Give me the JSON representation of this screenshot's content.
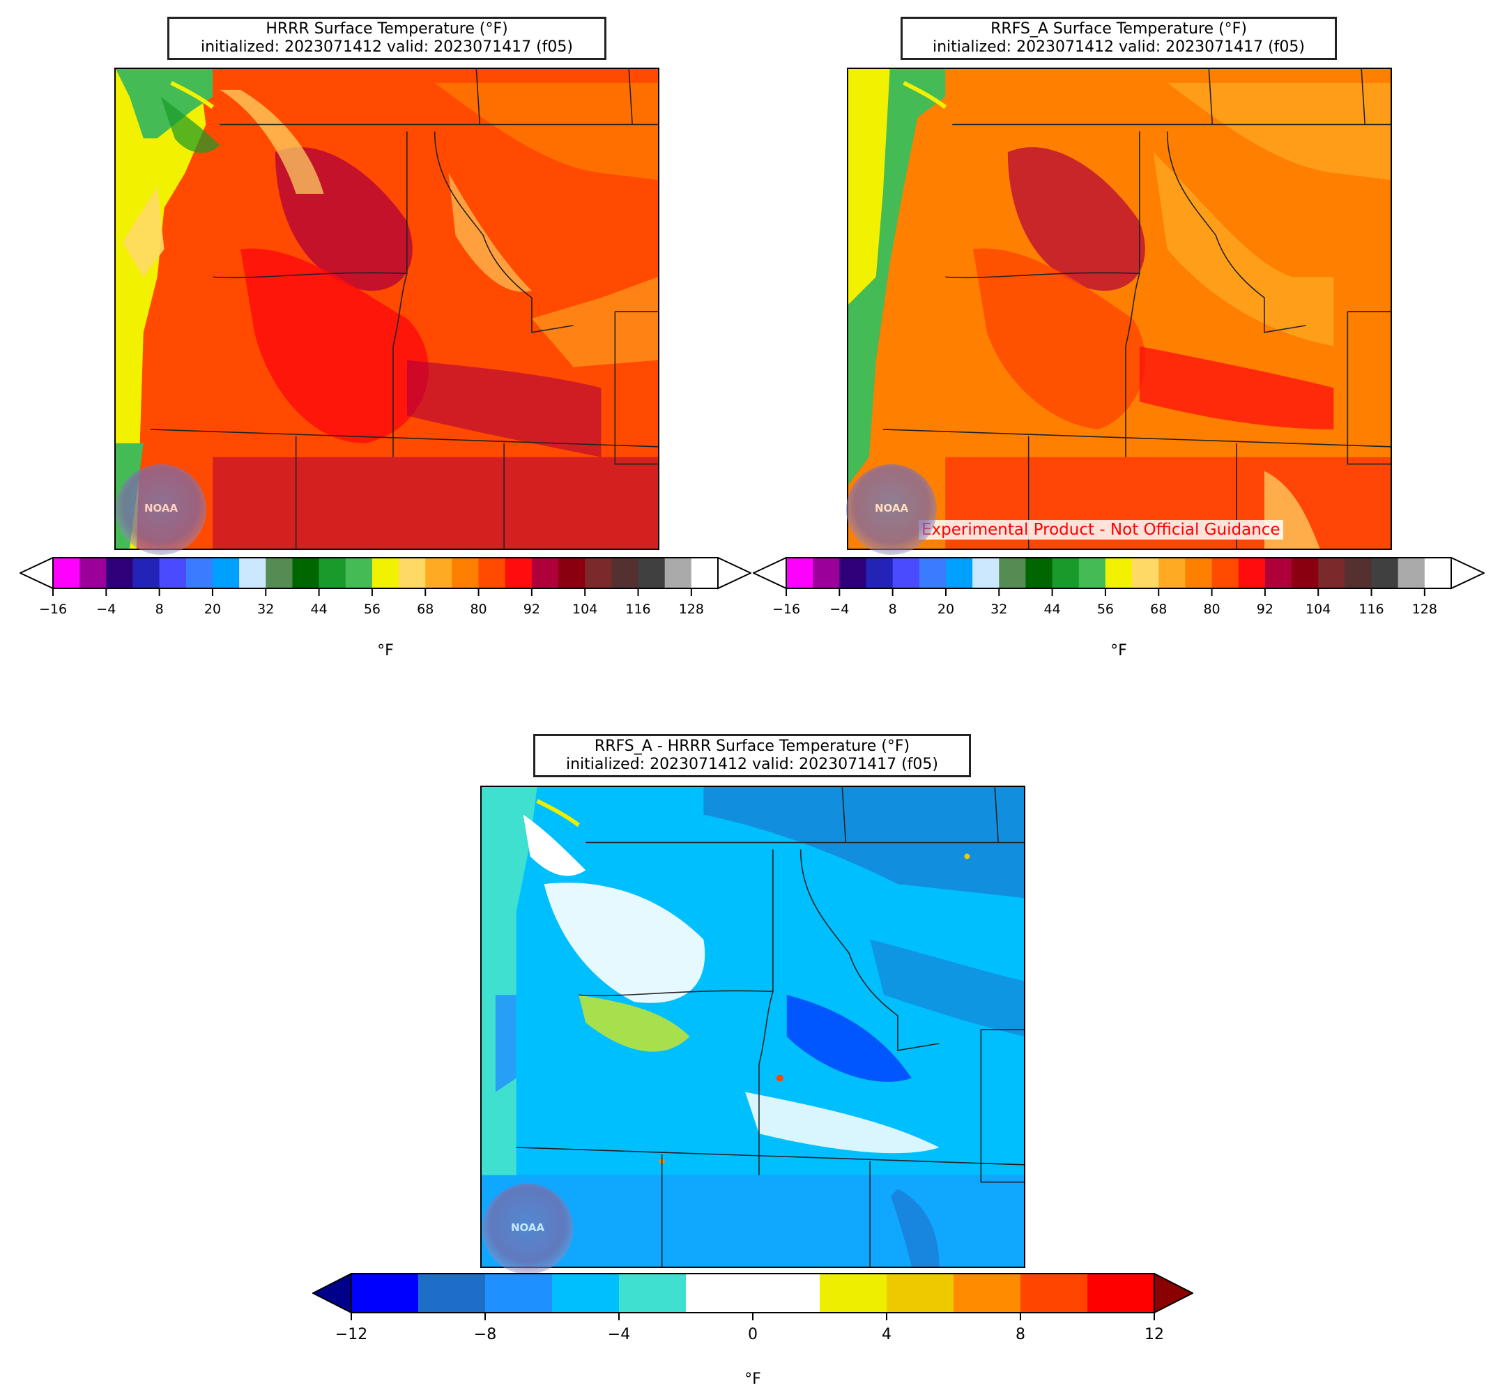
{
  "panels": [
    {
      "id": "hrrr",
      "title_line1": "HRRR Surface Temperature (°F)",
      "title_line2": "initialized: 2023071412 valid: 2023071417 (f05)",
      "watermark": ""
    },
    {
      "id": "rrfs",
      "title_line1": "RRFS_A Surface Temperature (°F)",
      "title_line2": "initialized: 2023071412 valid: 2023071417 (f05)",
      "watermark": "Experimental Product - Not Official Guidance"
    },
    {
      "id": "diff",
      "title_line1": "RRFS_A - HRRR Surface Temperature (°F)",
      "title_line2": "initialized: 2023071412 valid: 2023071417 (f05)",
      "watermark": ""
    }
  ],
  "temp_colorbar": {
    "unit": "°F",
    "ticks": [
      "−16",
      "−4",
      "8",
      "20",
      "32",
      "44",
      "56",
      "68",
      "80",
      "92",
      "104",
      "116",
      "128"
    ],
    "colors": [
      "#ff00ff",
      "#9b009b",
      "#2d007a",
      "#2323b8",
      "#4a4aff",
      "#3a7bff",
      "#00a0ff",
      "#cce8ff",
      "#548c54",
      "#006600",
      "#1a9a2a",
      "#44bb55",
      "#f2f200",
      "#ffd966",
      "#ffaa22",
      "#ff7f00",
      "#ff4a00",
      "#ff0d0d",
      "#b0003a",
      "#8b0010",
      "#7a2a2a",
      "#553030",
      "#404040",
      "#aaaaaa",
      "#ffffff"
    ],
    "extend_min_color": "#ffffff",
    "extend_max_color": "#ffffff"
  },
  "diff_colorbar": {
    "unit": "°F",
    "ticks": [
      "−12",
      "−8",
      "−4",
      "0",
      "4",
      "8",
      "12"
    ],
    "colors": [
      "#0000ff",
      "#1e6ec8",
      "#1e90ff",
      "#00bfff",
      "#40e0d0",
      "#ffffff",
      "#ffffff",
      "#eeee00",
      "#eec900",
      "#ff8c00",
      "#ff4500",
      "#ff0000"
    ],
    "extend_min_color": "#00008b",
    "extend_max_color": "#8b0000"
  },
  "logo": {
    "label": "NOAA"
  }
}
